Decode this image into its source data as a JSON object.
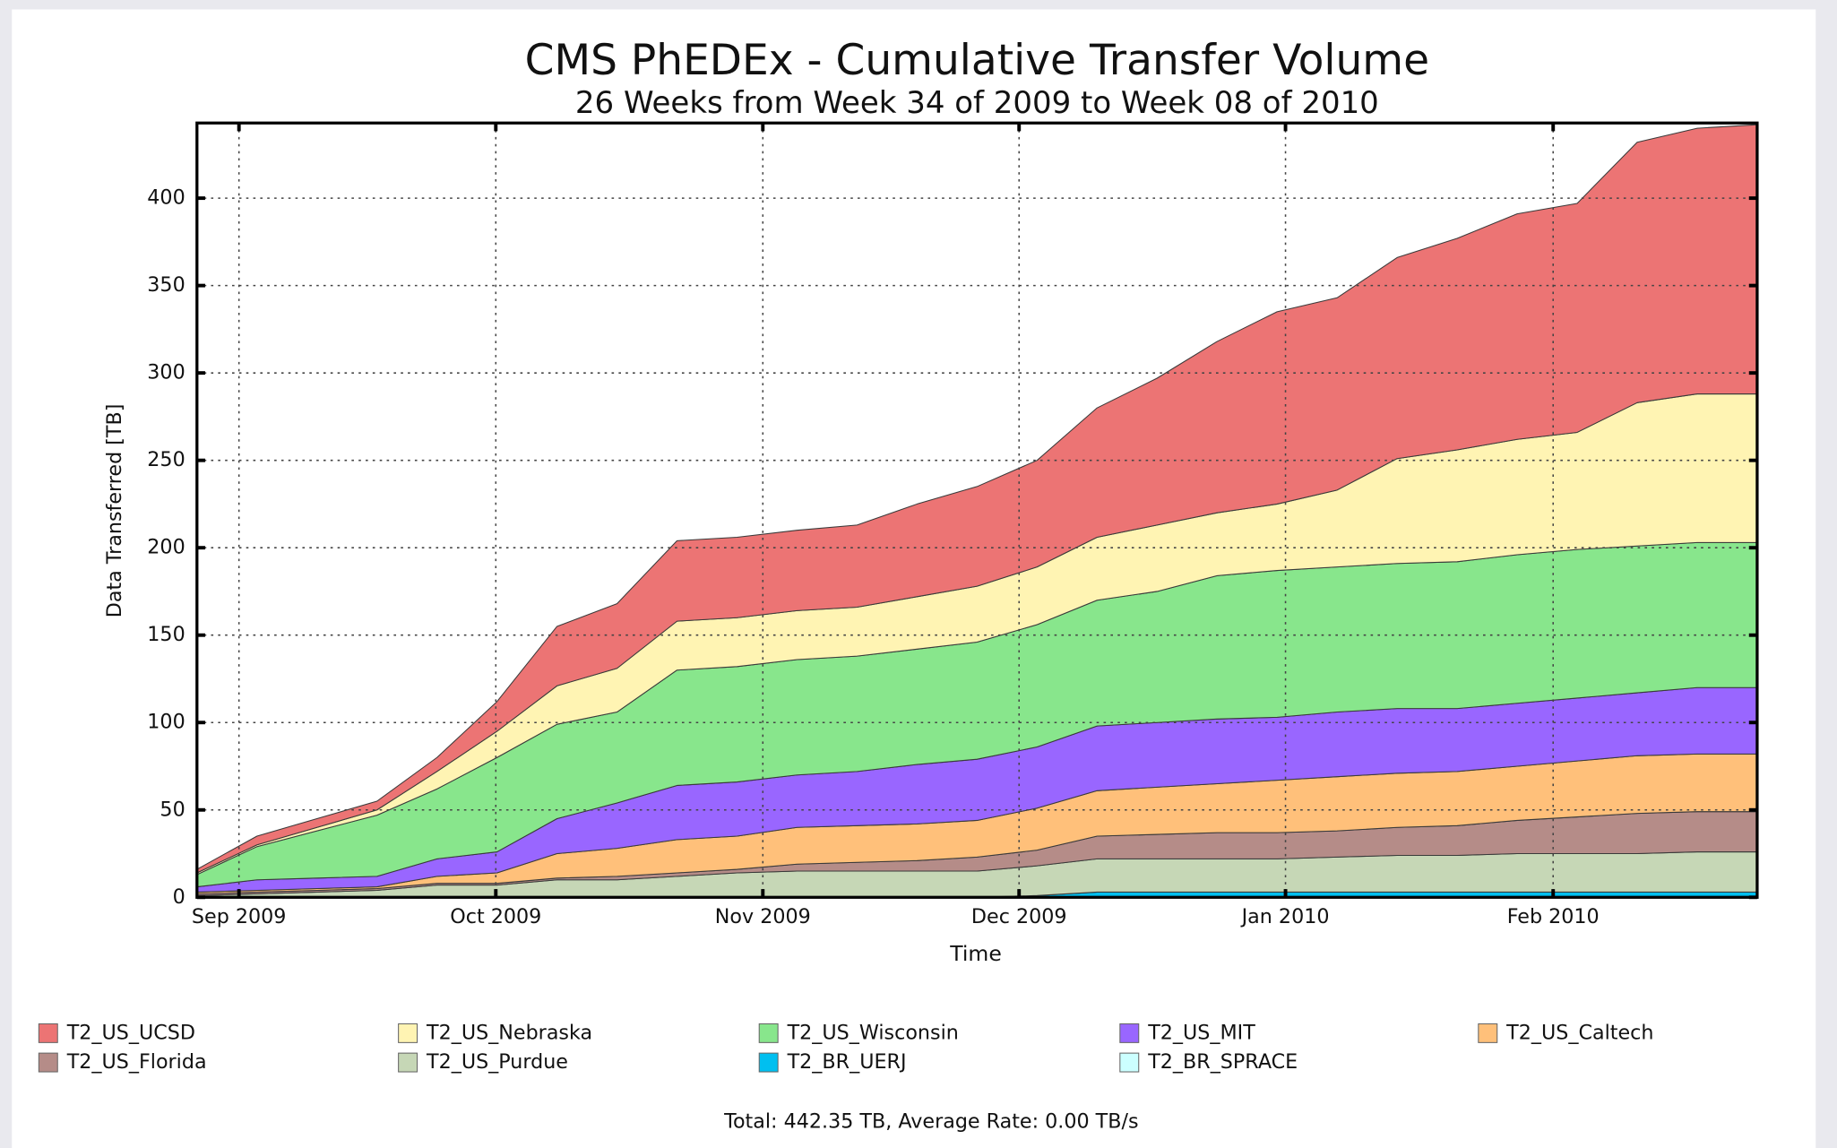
{
  "chart_data": {
    "type": "stacked_area",
    "title": "CMS PhEDEx - Cumulative Transfer Volume",
    "subtitle": "26 Weeks from Week 34 of 2009 to Week 08 of 2010",
    "ylabel": "Data Transferred [TB]",
    "xlabel": "Time",
    "footer": "Total: 442.35 TB, Average Rate: 0.00 TB/s",
    "grid": true,
    "x": [
      0,
      1,
      2,
      3,
      4,
      5,
      6,
      7,
      8,
      9,
      10,
      11,
      12,
      13,
      14,
      15,
      16,
      17,
      18,
      19,
      20,
      21,
      22,
      23,
      24,
      25,
      26
    ],
    "xlim": [
      0,
      26
    ],
    "xticks": [
      {
        "value": 0.7,
        "label": "Sep 2009"
      },
      {
        "value": 4.98,
        "label": "Oct 2009"
      },
      {
        "value": 9.43,
        "label": "Nov 2009"
      },
      {
        "value": 13.7,
        "label": "Dec 2009"
      },
      {
        "value": 18.14,
        "label": "Jan 2010"
      },
      {
        "value": 22.6,
        "label": "Feb 2010"
      }
    ],
    "ylim": [
      0,
      443
    ],
    "yticks": [
      0,
      50,
      100,
      150,
      200,
      250,
      300,
      350,
      400
    ],
    "series": [
      {
        "name": "T2_US_UCSD",
        "color": "#ec7474",
        "values": [
          2,
          5,
          5,
          5,
          8,
          17,
          34,
          37,
          46,
          46,
          46,
          47,
          53,
          57,
          61,
          74,
          84,
          98,
          110,
          110,
          115,
          121,
          129,
          131,
          149,
          152,
          154
        ]
      },
      {
        "name": "T2_US_Nebraska",
        "color": "#fff4b3",
        "values": [
          1,
          1,
          2,
          3,
          10,
          15,
          22,
          25,
          28,
          28,
          28,
          28,
          30,
          32,
          33,
          36,
          38,
          36,
          38,
          44,
          60,
          64,
          66,
          67,
          82,
          85,
          85
        ]
      },
      {
        "name": "T2_US_Wisconsin",
        "color": "#88e68c",
        "values": [
          7,
          19,
          27,
          35,
          40,
          54,
          54,
          52,
          66,
          66,
          66,
          66,
          66,
          67,
          70,
          72,
          75,
          82,
          84,
          83,
          83,
          84,
          85,
          85,
          84,
          83,
          83
        ]
      },
      {
        "name": "T2_US_MIT",
        "color": "#9966ff",
        "values": [
          3,
          6,
          6,
          6,
          10,
          12,
          20,
          26,
          31,
          31,
          30,
          31,
          34,
          35,
          35,
          37,
          37,
          37,
          36,
          37,
          37,
          36,
          36,
          36,
          36,
          38,
          38
        ]
      },
      {
        "name": "T2_US_Caltech",
        "color": "#ffc07a",
        "values": [
          1,
          1,
          1,
          1,
          4,
          6,
          14,
          16,
          19,
          19,
          21,
          21,
          21,
          21,
          24,
          26,
          27,
          28,
          30,
          31,
          31,
          31,
          31,
          32,
          33,
          33,
          33
        ]
      },
      {
        "name": "T2_US_Florida",
        "color": "#b58c88",
        "values": [
          1,
          1,
          1,
          1,
          1,
          1,
          1,
          2,
          2,
          2,
          4,
          5,
          6,
          8,
          9,
          13,
          14,
          15,
          15,
          15,
          16,
          17,
          19,
          21,
          23,
          23,
          23
        ]
      },
      {
        "name": "T2_US_Purdue",
        "color": "#c6d7b6",
        "values": [
          1,
          2,
          3,
          4,
          7,
          7,
          10,
          10,
          12,
          14,
          15,
          15,
          15,
          15,
          17,
          19,
          19,
          19,
          19,
          20,
          21,
          21,
          22,
          22,
          22,
          23,
          23
        ]
      },
      {
        "name": "T2_BR_UERJ",
        "color": "#00bff0",
        "values": [
          0,
          0,
          0,
          0,
          0,
          0,
          0,
          0,
          0,
          0,
          0,
          0,
          0,
          0,
          1,
          3,
          3,
          3,
          3,
          3,
          3,
          3,
          3,
          3,
          3,
          3,
          3
        ]
      },
      {
        "name": "T2_BR_SPRACE",
        "color": "#ccffff",
        "values": [
          0,
          0,
          0,
          0,
          0,
          0,
          0,
          0,
          0,
          0,
          0,
          0,
          0,
          0,
          0,
          0,
          0,
          0,
          0,
          0,
          0,
          0,
          0,
          0,
          0,
          0,
          0
        ]
      }
    ]
  }
}
